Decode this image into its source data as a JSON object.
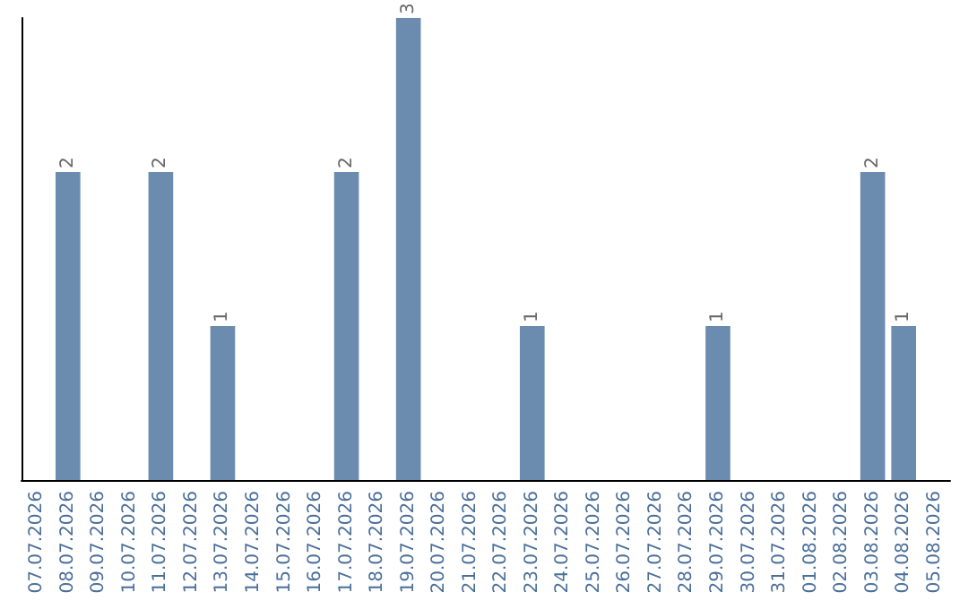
{
  "chart_data": {
    "type": "bar",
    "categories": [
      "07.07.2026",
      "08.07.2026",
      "09.07.2026",
      "10.07.2026",
      "11.07.2026",
      "12.07.2026",
      "13.07.2026",
      "14.07.2026",
      "15.07.2026",
      "16.07.2026",
      "17.07.2026",
      "18.07.2026",
      "19.07.2026",
      "20.07.2026",
      "21.07.2026",
      "22.07.2026",
      "23.07.2026",
      "24.07.2026",
      "25.07.2026",
      "26.07.2026",
      "27.07.2026",
      "28.07.2026",
      "29.07.2026",
      "30.07.2026",
      "31.07.2026",
      "01.08.2026",
      "02.08.2026",
      "03.08.2026",
      "04.08.2026",
      "05.08.2026"
    ],
    "values": [
      0,
      2,
      0,
      0,
      2,
      0,
      1,
      0,
      0,
      0,
      2,
      0,
      3,
      0,
      0,
      0,
      1,
      0,
      0,
      0,
      0,
      0,
      1,
      0,
      0,
      0,
      0,
      2,
      1,
      0
    ],
    "value_labels": [
      null,
      "2",
      null,
      null,
      "2",
      null,
      "1",
      null,
      null,
      null,
      "2",
      null,
      "3",
      null,
      null,
      null,
      "1",
      null,
      null,
      null,
      null,
      null,
      "1",
      null,
      null,
      null,
      null,
      "2",
      "1",
      null
    ],
    "color": "#6b8cae",
    "grid": false,
    "tick_labels": "x"
  }
}
